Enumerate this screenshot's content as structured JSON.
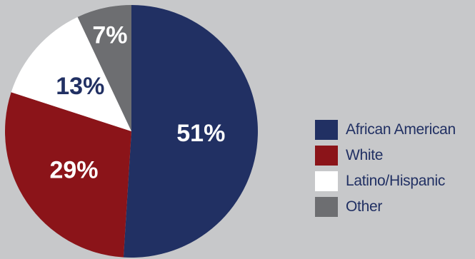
{
  "chart_data": {
    "type": "pie",
    "categories": [
      "African American",
      "White",
      "Latino/Hispanic",
      "Other"
    ],
    "values": [
      51,
      29,
      13,
      7
    ],
    "value_labels": [
      "51%",
      "29%",
      "13%",
      "7%"
    ],
    "colors": [
      "#213063",
      "#8b1419",
      "#ffffff",
      "#6d6e71"
    ],
    "label_colors": [
      "#ffffff",
      "#ffffff",
      "#213063",
      "#ffffff"
    ],
    "start": "12 o'clock, clockwise",
    "legend": "right",
    "title": ""
  },
  "legend": {
    "text_color": "#213063",
    "items": [
      {
        "label": "African American",
        "color": "#213063"
      },
      {
        "label": "White",
        "color": "#8b1419"
      },
      {
        "label": "Latino/Hispanic",
        "color": "#ffffff"
      },
      {
        "label": "Other",
        "color": "#6d6e71"
      }
    ]
  },
  "background_color": "#c7c8ca"
}
